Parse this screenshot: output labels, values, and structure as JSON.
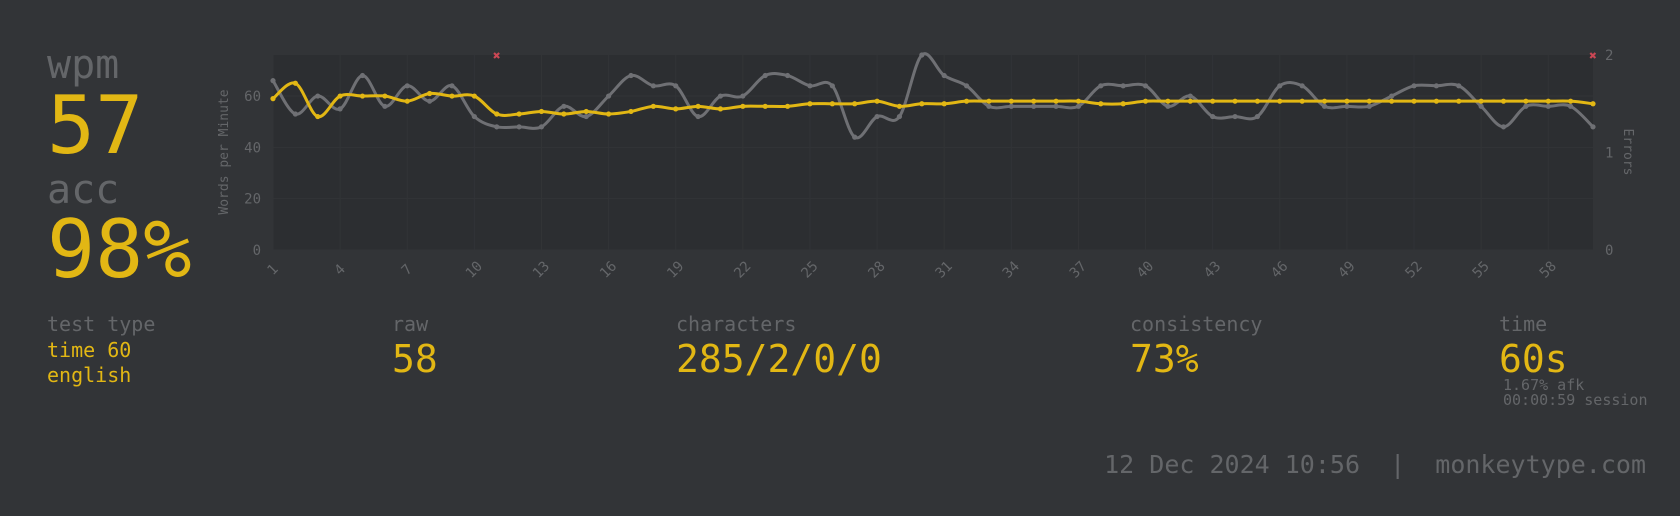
{
  "stats": {
    "wpm_label": "wpm",
    "wpm_value": "57",
    "acc_label": "acc",
    "acc_value": "98%",
    "test_type_label": "test type",
    "test_type_mode": "time 60",
    "test_type_language": "english",
    "raw_label": "raw",
    "raw_value": "58",
    "characters_label": "characters",
    "characters_value": "285/2/0/0",
    "consistency_label": "consistency",
    "consistency_value": "73%",
    "time_label": "time",
    "time_value": "60s",
    "afk_text": "1.67% afk",
    "session_text": "00:00:59 session"
  },
  "footer": {
    "date": "12 Dec 2024 10:56",
    "separator": "|",
    "site": "monkeytype.com"
  },
  "colors": {
    "background": "#323437",
    "plot_area": "#2c2e31",
    "main": "#e2b714",
    "sub": "#646669",
    "raw_line": "#6f7074",
    "error": "#ca4754"
  },
  "chart_data": {
    "type": "line",
    "xlabel": "",
    "ylabel": "Words per Minute",
    "y2label": "Errors",
    "x": [
      1,
      2,
      3,
      4,
      5,
      6,
      7,
      8,
      9,
      10,
      11,
      12,
      13,
      14,
      15,
      16,
      17,
      18,
      19,
      20,
      21,
      22,
      23,
      24,
      25,
      26,
      27,
      28,
      29,
      30,
      31,
      32,
      33,
      34,
      35,
      36,
      37,
      38,
      39,
      40,
      41,
      42,
      43,
      44,
      45,
      46,
      47,
      48,
      49,
      50,
      51,
      52,
      53,
      54,
      55,
      56,
      57,
      58,
      59,
      60
    ],
    "x_ticks": [
      1,
      4,
      7,
      10,
      13,
      16,
      19,
      22,
      25,
      28,
      31,
      34,
      37,
      40,
      43,
      46,
      49,
      52,
      55,
      58
    ],
    "ylim": [
      0,
      76
    ],
    "y_ticks": [
      0,
      20,
      40,
      60
    ],
    "y2lim": [
      0,
      2
    ],
    "y2_ticks": [
      0,
      1,
      2
    ],
    "grid": true,
    "series": [
      {
        "name": "",
        "axis": "left",
        "color": "#6f7074",
        "values": [
          66,
          53,
          60,
          55,
          68,
          56,
          64,
          58,
          64,
          52,
          48,
          48,
          48,
          56,
          52,
          60,
          68,
          64,
          64,
          52,
          60,
          60,
          68,
          68,
          64,
          64,
          44,
          52,
          52,
          76,
          68,
          64,
          56,
          56,
          56,
          56,
          56,
          64,
          64,
          64,
          56,
          60,
          52,
          52,
          52,
          64,
          64,
          56,
          56,
          56,
          60,
          64,
          64,
          64,
          56,
          48,
          56,
          56,
          56,
          48
        ]
      },
      {
        "name": "",
        "axis": "left",
        "color": "#e2b714",
        "values": [
          59,
          65,
          52,
          60,
          60,
          60,
          58,
          61,
          60,
          60,
          53,
          53,
          54,
          53,
          54,
          53,
          54,
          56,
          55,
          56,
          55,
          56,
          56,
          56,
          57,
          57,
          57,
          58,
          56,
          57,
          57,
          58,
          58,
          58,
          58,
          58,
          58,
          57,
          57,
          58,
          58,
          58,
          58,
          58,
          58,
          58,
          58,
          58,
          58,
          58,
          58,
          58,
          58,
          58,
          58,
          58,
          58,
          58,
          58,
          57
        ]
      },
      {
        "name": "",
        "axis": "right",
        "type": "scatter",
        "color": "#ca4754",
        "points": [
          {
            "x": 11,
            "y": 2
          },
          {
            "x": 60,
            "y": 2
          }
        ]
      }
    ]
  }
}
